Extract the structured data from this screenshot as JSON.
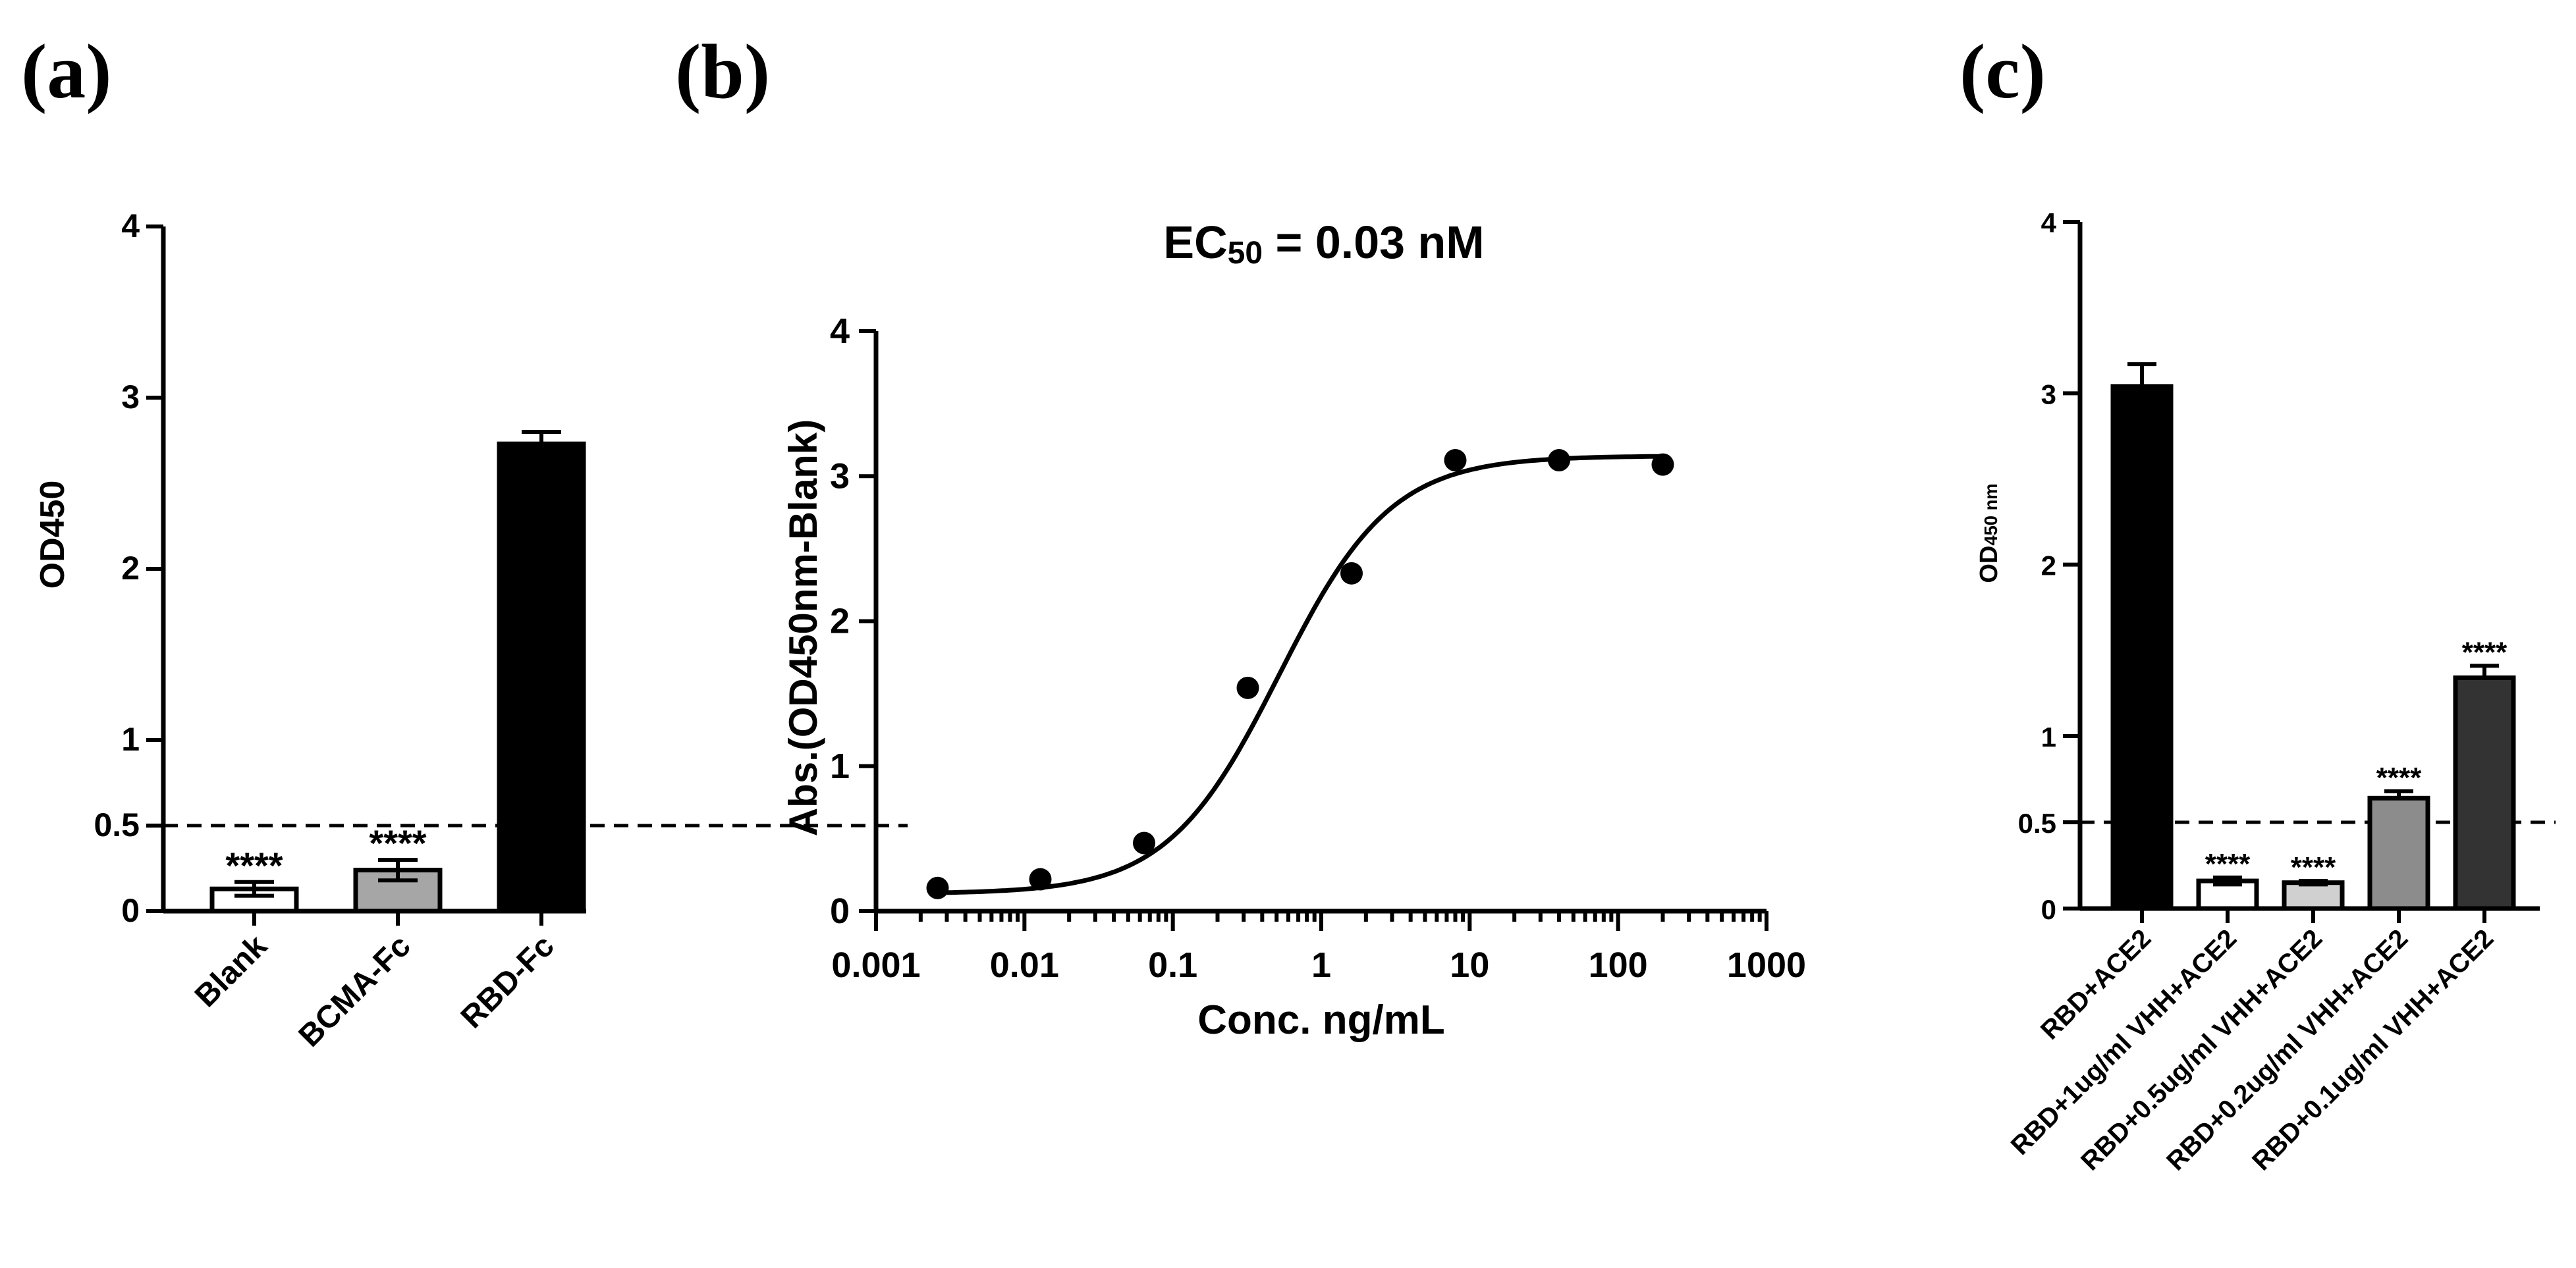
{
  "chart_data": [
    {
      "panel": "(a)",
      "type": "bar",
      "title": "",
      "xlabel": "",
      "ylabel": "OD450",
      "ylim": [
        0,
        4
      ],
      "yticks": [
        "0",
        "0.5",
        "1",
        "2",
        "3",
        "4"
      ],
      "ytick_values": [
        0,
        0.5,
        1,
        2,
        3,
        4
      ],
      "threshold": 0.5,
      "categories": [
        "Blank",
        "BCMA-Fc",
        "RBD-Fc"
      ],
      "values": [
        0.13,
        0.24,
        2.73
      ],
      "errors": [
        0.04,
        0.06,
        0.07
      ],
      "fills": [
        "#ffffff",
        "#a6a6a6",
        "#000000"
      ],
      "significance": [
        "****",
        "****",
        ""
      ]
    },
    {
      "panel": "(b)",
      "type": "scatter",
      "title": "EC",
      "title_sub": "50",
      "title_rest": " = 0.03 nM",
      "xlabel": "Conc. ng/mL",
      "ylabel": "Abs.(OD450nm-Blank)",
      "xscale": "log",
      "xlim": [
        0.001,
        1000
      ],
      "ylim": [
        0,
        4
      ],
      "xticks": [
        "0.001",
        "0.01",
        "0.1",
        "1",
        "10",
        "100",
        "1000"
      ],
      "xtick_values": [
        0.001,
        0.01,
        0.1,
        1,
        10,
        100,
        1000
      ],
      "yticks": [
        "0",
        "1",
        "2",
        "3",
        "4"
      ],
      "ytick_values": [
        0,
        1,
        2,
        3,
        4
      ],
      "x": [
        0.0026,
        0.0128,
        0.064,
        0.32,
        1.6,
        8,
        40,
        200
      ],
      "y": [
        0.16,
        0.22,
        0.47,
        1.54,
        2.33,
        3.11,
        3.11,
        3.08
      ],
      "fit": {
        "model": "4PL",
        "bottom": 0.12,
        "top": 3.14,
        "ec50": 0.52,
        "hill": 1.15
      }
    },
    {
      "panel": "(c)",
      "type": "bar",
      "title": "",
      "xlabel": "",
      "ylabel": "OD",
      "ylabel_sub": "450 nm",
      "ylim": [
        0,
        4
      ],
      "yticks": [
        "0",
        "0.5",
        "1",
        "2",
        "3",
        "4"
      ],
      "ytick_values": [
        0,
        0.5,
        1,
        2,
        3,
        4
      ],
      "threshold": 0.5,
      "categories": [
        "RBD+ACE2",
        "RBD+1ug/ml VHH+ACE2",
        "RBD+0.5ug/ml VHH+ACE2",
        "RBD+0.2ug/ml VHH+ACE2",
        "RBD+0.1ug/ml VHH+ACE2"
      ],
      "values": [
        3.04,
        0.16,
        0.15,
        0.64,
        1.34
      ],
      "errors": [
        0.13,
        0.02,
        0.01,
        0.04,
        0.07
      ],
      "fills": [
        "#000000",
        "#ffffff",
        "#d0d0d0",
        "#8c8c8c",
        "#333333"
      ],
      "significance": [
        "",
        "****",
        "****",
        "****",
        "****"
      ]
    }
  ]
}
